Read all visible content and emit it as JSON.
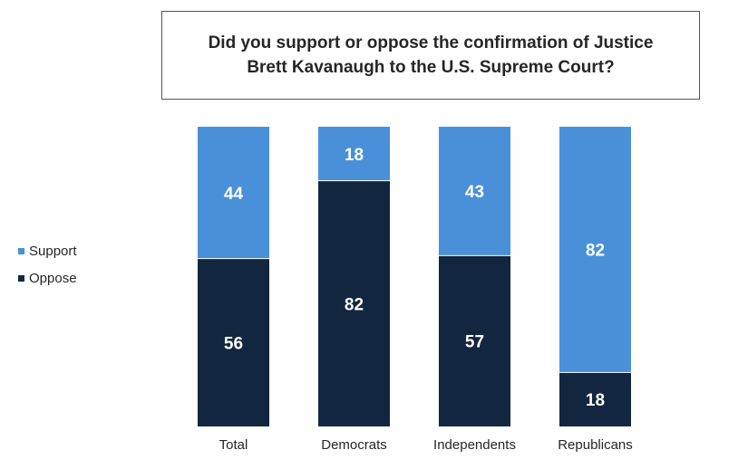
{
  "chart_data": {
    "type": "bar",
    "stacked": true,
    "title": "Did you support or oppose the confirmation of Justice Brett Kavanaugh to the U.S. Supreme Court?",
    "categories": [
      "Total",
      "Democrats",
      "Independents",
      "Republicans"
    ],
    "series": [
      {
        "name": "Support",
        "values": [
          44,
          18,
          43,
          82
        ],
        "color": "#4a90d9"
      },
      {
        "name": "Oppose",
        "values": [
          56,
          82,
          57,
          18
        ],
        "color": "#12263f"
      }
    ],
    "ylim": [
      0,
      100
    ],
    "grid": false,
    "legend_position": "left"
  }
}
